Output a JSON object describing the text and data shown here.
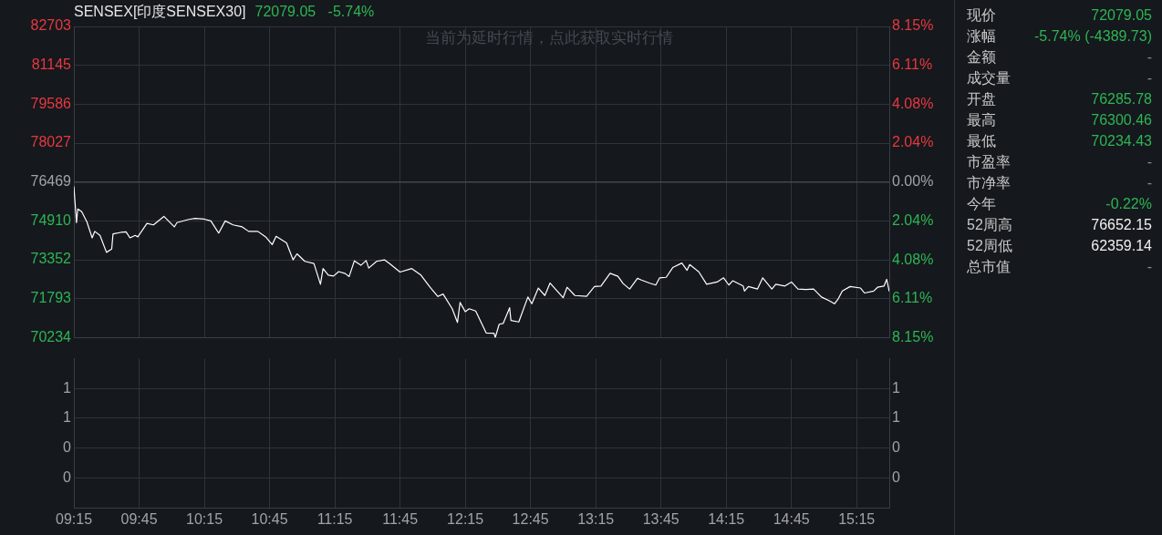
{
  "chart_data": [
    {
      "type": "line",
      "title": "SENSEX[印度SENSEX30]",
      "subtitle": "72079.05   -5.74%",
      "annotations": [
        "当前为延时行情，点此获取实时行情"
      ],
      "color": "#ffffff",
      "grid": true,
      "tick_labels": "y",
      "x": [
        9.25,
        9.26,
        9.27,
        9.28,
        9.31,
        9.35,
        9.39,
        9.41,
        9.45,
        9.5,
        9.54,
        9.55,
        9.61,
        9.65,
        9.68,
        9.72,
        9.74,
        9.81,
        9.86,
        9.94,
        10.02,
        10.04,
        10.13,
        10.18,
        10.25,
        10.3,
        10.36,
        10.41,
        10.47,
        10.54,
        10.59,
        10.66,
        10.72,
        10.77,
        10.8,
        10.88,
        10.93,
        10.96,
        11.02,
        11.09,
        11.14,
        11.16,
        11.2,
        11.24,
        11.28,
        11.33,
        11.36,
        11.4,
        11.45,
        11.49,
        11.51,
        11.57,
        11.63,
        11.67,
        11.75,
        11.84,
        11.91,
        11.98,
        12.04,
        12.08,
        12.15,
        12.19,
        12.21,
        12.25,
        12.28,
        12.33,
        12.41,
        12.47,
        12.48,
        12.51,
        12.54,
        12.59,
        12.6,
        12.66,
        12.73,
        12.76,
        12.81,
        12.86,
        12.9,
        13.0,
        13.03,
        13.09,
        13.18,
        13.24,
        13.29,
        13.36,
        13.42,
        13.46,
        13.51,
        13.57,
        13.6,
        13.66,
        13.71,
        13.74,
        13.79,
        13.84,
        13.91,
        13.95,
        13.97,
        14.04,
        14.1,
        14.18,
        14.23,
        14.27,
        14.3,
        14.38,
        14.39,
        14.42,
        14.49,
        14.53,
        14.6,
        14.63,
        14.7,
        14.75,
        14.8,
        14.86,
        14.92,
        14.98,
        15.04,
        15.08,
        15.11,
        15.14,
        15.2,
        15.28,
        15.31,
        15.38,
        15.41,
        15.46,
        15.48,
        15.5
      ],
      "values": [
        76290,
        75570,
        74840,
        75390,
        75280,
        74870,
        74230,
        74490,
        74330,
        73650,
        73780,
        74390,
        74450,
        74470,
        74230,
        74330,
        74270,
        74810,
        74750,
        75090,
        74670,
        74840,
        74970,
        75010,
        74980,
        74910,
        74420,
        74910,
        74750,
        74670,
        74490,
        74490,
        74270,
        73960,
        74290,
        74030,
        73350,
        73590,
        73290,
        73200,
        72370,
        73000,
        72740,
        72700,
        72880,
        72800,
        72680,
        73310,
        73130,
        73320,
        73020,
        73290,
        73350,
        73200,
        72860,
        73000,
        72740,
        72250,
        71880,
        71980,
        71390,
        70840,
        71640,
        71270,
        71390,
        71300,
        70420,
        70410,
        70240,
        70770,
        70800,
        71430,
        70920,
        70860,
        71860,
        71590,
        72220,
        71920,
        72420,
        71830,
        72250,
        71920,
        71890,
        72280,
        72300,
        72810,
        72690,
        72400,
        72180,
        72610,
        72540,
        72420,
        72340,
        72630,
        72650,
        73040,
        73220,
        72930,
        73160,
        72870,
        72370,
        72460,
        72630,
        72340,
        72510,
        72300,
        72100,
        72280,
        72180,
        72630,
        72180,
        72370,
        72300,
        72460,
        72180,
        72160,
        72180,
        71860,
        71710,
        71590,
        71800,
        72100,
        72280,
        72220,
        72020,
        72100,
        72250,
        72300,
        72570,
        72080
      ],
      "xlim": [
        9.25,
        15.5
      ],
      "xticks": [
        {
          "value": 9.25,
          "label": null
        },
        {
          "value": 9.75,
          "label": null
        },
        {
          "value": 10.25,
          "label": null
        },
        {
          "value": 10.75,
          "label": null
        },
        {
          "value": 11.25,
          "label": null
        },
        {
          "value": 11.75,
          "label": null
        },
        {
          "value": 12.25,
          "label": null
        },
        {
          "value": 12.75,
          "label": null
        },
        {
          "value": 13.25,
          "label": null
        },
        {
          "value": 13.75,
          "label": null
        },
        {
          "value": 14.25,
          "label": null
        },
        {
          "value": 14.75,
          "label": null
        },
        {
          "value": 15.25,
          "label": null
        }
      ],
      "ylim": [
        70234,
        82703
      ],
      "yticks": [
        70234,
        71793,
        73352,
        74910,
        76469,
        78027,
        79586,
        81145,
        82703
      ],
      "y2lim": [
        -8.15,
        8.15
      ],
      "y2ticks": [
        {
          "value": -8.15,
          "label": "8.15%"
        },
        {
          "value": -6.11,
          "label": "6.11%"
        },
        {
          "value": -4.08,
          "label": "4.08%"
        },
        {
          "value": -2.04,
          "label": "2.04%"
        },
        {
          "value": 0,
          "label": "0.00%"
        },
        {
          "value": 2.04,
          "label": "2.04%"
        },
        {
          "value": 4.08,
          "label": "4.08%"
        },
        {
          "value": 6.11,
          "label": "6.11%"
        },
        {
          "value": 8.15,
          "label": "8.15%"
        }
      ],
      "ref_lines": [
        {
          "axis": "y",
          "value": 76469,
          "color": "#44484e"
        }
      ]
    },
    {
      "type": "bar",
      "grid": true,
      "xlim": [
        9.25,
        15.5
      ],
      "xticks": [
        {
          "value": 9.25,
          "label": "09:15"
        },
        {
          "value": 9.75,
          "label": "09:45"
        },
        {
          "value": 10.25,
          "label": "10:15"
        },
        {
          "value": 10.75,
          "label": "10:45"
        },
        {
          "value": 11.25,
          "label": "11:15"
        },
        {
          "value": 11.75,
          "label": "11:45"
        },
        {
          "value": 12.25,
          "label": "12:15"
        },
        {
          "value": 12.75,
          "label": "12:45"
        },
        {
          "value": 13.25,
          "label": "13:15"
        },
        {
          "value": 13.75,
          "label": "13:45"
        },
        {
          "value": 14.25,
          "label": "14:15"
        },
        {
          "value": 14.75,
          "label": "14:45"
        },
        {
          "value": 15.25,
          "label": "15:15"
        }
      ],
      "ylim": [
        0,
        1
      ],
      "yticks": [
        {
          "value": 0.2,
          "label": "0"
        },
        {
          "value": 0.4,
          "label": "0"
        },
        {
          "value": 0.6,
          "label": "1"
        },
        {
          "value": 0.8,
          "label": "1"
        }
      ],
      "y2lim": [
        0,
        1
      ],
      "y2ticks": [
        {
          "value": 0.2,
          "label": "0"
        },
        {
          "value": 0.4,
          "label": "0"
        },
        {
          "value": 0.6,
          "label": "1"
        },
        {
          "value": 0.8,
          "label": "1"
        }
      ]
    },
    {
      "type": "other",
      "annotations": [
        "现价",
        "72079.05",
        "涨幅",
        "-5.74% (-4389.73)",
        "金额",
        "-",
        "成交量",
        "-",
        "开盘",
        "76285.78",
        "最高",
        "76300.46",
        "最低",
        "70234.43",
        "市盈率",
        "-",
        "市净率",
        "-",
        "今年",
        "-0.22%",
        "52周高",
        "76652.15",
        "52周低",
        "62359.14",
        "总市值",
        "-"
      ],
      "colors": [
        "#c8c8c8",
        "#2db553",
        "#c8c8c8",
        "#2db553",
        "#c8c8c8",
        "#8a8a8a",
        "#c8c8c8",
        "#8a8a8a",
        "#c8c8c8",
        "#2db553",
        "#c8c8c8",
        "#2db553",
        "#c8c8c8",
        "#2db553",
        "#c8c8c8",
        "#8a8a8a",
        "#c8c8c8",
        "#8a8a8a",
        "#c8c8c8",
        "#2db553",
        "#c8c8c8",
        "#f0f0f0",
        "#c8c8c8",
        "#f0f0f0",
        "#c8c8c8",
        "#8a8a8a"
      ]
    }
  ]
}
